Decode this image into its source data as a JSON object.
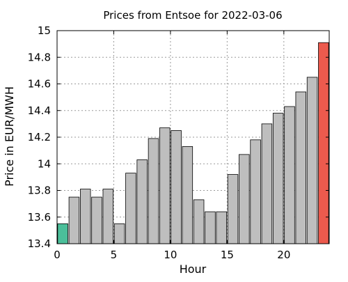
{
  "chart_data": {
    "type": "bar",
    "title": "Prices from Entsoe for 2022-03-06",
    "xlabel": "Hour",
    "ylabel": "Price in EUR/MWH",
    "x": [
      0,
      1,
      2,
      3,
      4,
      5,
      6,
      7,
      8,
      9,
      10,
      11,
      12,
      13,
      14,
      15,
      16,
      17,
      18,
      19,
      20,
      21,
      22,
      23
    ],
    "values": [
      13.55,
      13.75,
      13.81,
      13.75,
      13.81,
      13.55,
      13.93,
      14.03,
      14.19,
      14.27,
      14.25,
      14.13,
      13.73,
      13.64,
      13.64,
      13.92,
      14.07,
      14.18,
      14.3,
      14.38,
      14.43,
      14.54,
      14.65,
      14.91
    ],
    "xlim": [
      0,
      24
    ],
    "ylim": [
      13.4,
      15.0
    ],
    "xticks": [
      0,
      5,
      10,
      15,
      20
    ],
    "xtick_labels": [
      "0",
      "5",
      "10",
      "15",
      "20"
    ],
    "yticks": [
      13.4,
      13.6,
      13.8,
      14.0,
      14.2,
      14.4,
      14.6,
      14.8,
      15.0
    ],
    "ytick_labels": [
      "13.4",
      "13.6",
      "13.8",
      "14",
      "14.2",
      "14.4",
      "14.6",
      "14.8",
      "15"
    ],
    "grid": true,
    "colors": {
      "default_bar": "#bebebe",
      "min_bar": "#4bbf9a",
      "max_bar": "#ec5a4d",
      "bar_edge": "#000000",
      "grid": "#9a9a9a"
    },
    "highlight": {
      "min_index": 0,
      "max_index": 23
    }
  }
}
